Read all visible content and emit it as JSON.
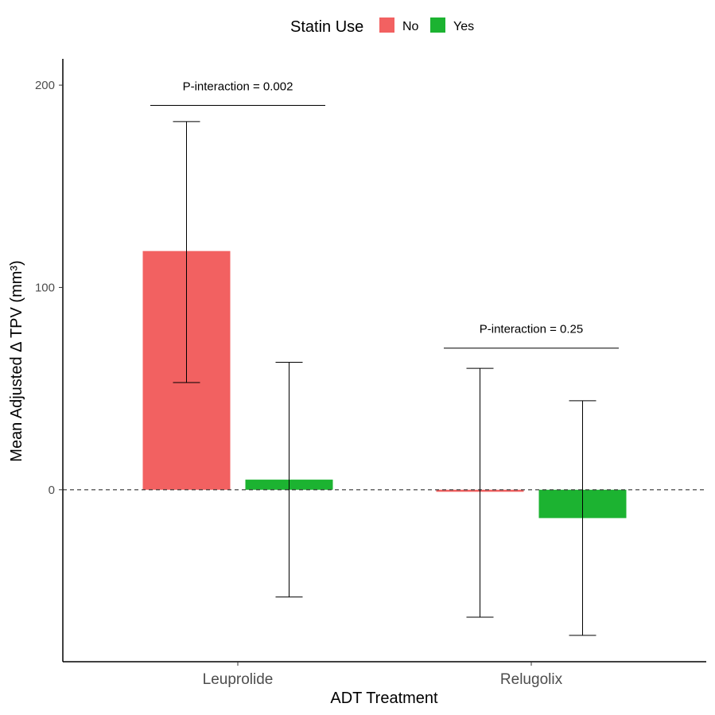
{
  "chart_data": {
    "type": "bar",
    "title": "",
    "xlabel": "ADT Treatment",
    "ylabel": "Mean Adjusted Δ TPV (mm³)",
    "ylim": [
      -85,
      213
    ],
    "yticks": [
      0,
      100,
      200
    ],
    "ytick_labels": [
      "0",
      "100",
      "200"
    ],
    "categories": [
      "Leuprolide",
      "Relugolix"
    ],
    "legend": {
      "title": "Statin Use",
      "position": "top",
      "entries": [
        "No",
        "Yes"
      ]
    },
    "series": [
      {
        "name": "No",
        "color": "#F26161",
        "values": [
          118,
          -1
        ],
        "error_low": [
          53,
          -63
        ],
        "error_high": [
          182,
          60
        ]
      },
      {
        "name": "Yes",
        "color": "#1CB331",
        "values": [
          5,
          -14
        ],
        "error_low": [
          -53,
          -72
        ],
        "error_high": [
          63,
          44
        ]
      }
    ],
    "reference_line": {
      "y": 0,
      "style": "dashed"
    },
    "annotations": [
      {
        "category": "Leuprolide",
        "text": "P-interaction = 0.002",
        "y": 190
      },
      {
        "category": "Relugolix",
        "text": "P-interaction = 0.25",
        "y": 70
      }
    ]
  }
}
